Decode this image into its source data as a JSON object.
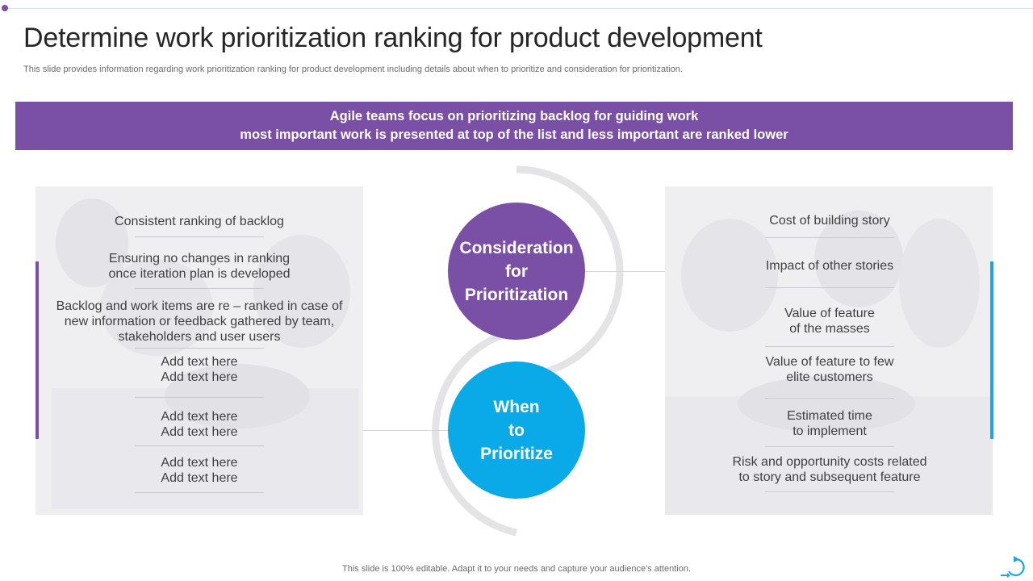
{
  "slide": {
    "title": "Determine work prioritization ranking for product development",
    "subtitle": "This slide provides information regarding work prioritization ranking for product development including details about when to prioritize and consideration for prioritization."
  },
  "banner": {
    "line1": "Agile teams focus on prioritizing backlog for guiding work",
    "line2": "most important work is presented at top of the list and less important are ranked lower"
  },
  "center": {
    "consideration": [
      "Consideration",
      "for",
      "Prioritization"
    ],
    "when": [
      "When",
      "to",
      "Prioritize"
    ]
  },
  "left_items": [
    [
      "Consistent ranking of backlog"
    ],
    [
      "Ensuring no changes in ranking",
      "once iteration plan is developed"
    ],
    [
      "Backlog and work items are re – ranked in case of",
      "new information or feedback gathered by team,",
      "stakeholders and user users"
    ],
    [
      "Add text here",
      "Add text here"
    ],
    [
      "Add text here",
      "Add text here"
    ],
    [
      "Add text here",
      "Add text here"
    ]
  ],
  "right_items": [
    [
      "Cost of building story"
    ],
    [
      "Impact of other stories"
    ],
    [
      "Value of feature",
      "of the masses"
    ],
    [
      "Value of feature to few",
      "elite customers"
    ],
    [
      "Estimated time",
      "to implement"
    ],
    [
      "Risk and opportunity  costs related",
      "to story and subsequent feature"
    ]
  ],
  "footer": "This slide is 100% editable. Adapt it to your needs and capture your audience's attention.",
  "icons": {
    "corner": "refresh-arrow-icon"
  },
  "colors": {
    "purple": "#7a4fa6",
    "blue": "#0aaae8",
    "text": "#404040"
  }
}
